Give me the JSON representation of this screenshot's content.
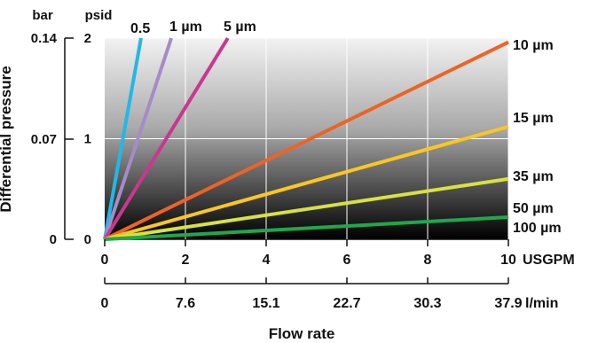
{
  "chart_data": {
    "type": "line",
    "ylabel": "Differential pressure",
    "xlabel": "Flow rate",
    "y_units": {
      "bar": "bar",
      "psid": "psid"
    },
    "x_units": {
      "usgpm": "USGPM",
      "lmin": "l/min"
    },
    "y_ticks_bar": [
      "0",
      "0.07",
      "0.14"
    ],
    "y_ticks_psid": [
      "0",
      "1",
      "2"
    ],
    "x_ticks_usgpm": [
      "0",
      "2",
      "4",
      "6",
      "8",
      "10"
    ],
    "x_ticks_lmin": [
      "0",
      "7.6",
      "15.1",
      "22.7",
      "30.3",
      "37.9"
    ],
    "xlim": [
      0,
      10
    ],
    "ylim": [
      0,
      2
    ],
    "grid": true,
    "series": [
      {
        "name": "0.5",
        "color": "#22b8e6",
        "x": [
          0,
          0.9
        ],
        "y": [
          0,
          2
        ]
      },
      {
        "name": "1 µm",
        "color": "#a58bc8",
        "x": [
          0,
          1.65
        ],
        "y": [
          0,
          2
        ]
      },
      {
        "name": "5 µm",
        "color": "#c8388e",
        "x": [
          0,
          3.05
        ],
        "y": [
          0,
          2
        ]
      },
      {
        "name": "10 µm",
        "color": "#ee6324",
        "x": [
          0,
          10
        ],
        "y": [
          0,
          1.96
        ]
      },
      {
        "name": "15 µm",
        "color": "#fac622",
        "x": [
          0,
          10
        ],
        "y": [
          0,
          1.12
        ]
      },
      {
        "name": "35 µm",
        "color": "#d8e23e",
        "x": [
          0,
          10
        ],
        "y": [
          0,
          0.6
        ]
      },
      {
        "name": "100 µm",
        "color": "#1ea84c",
        "x": [
          0,
          10
        ],
        "y": [
          0,
          0.22
        ]
      }
    ],
    "extra_labels": [
      "50 µm"
    ]
  }
}
